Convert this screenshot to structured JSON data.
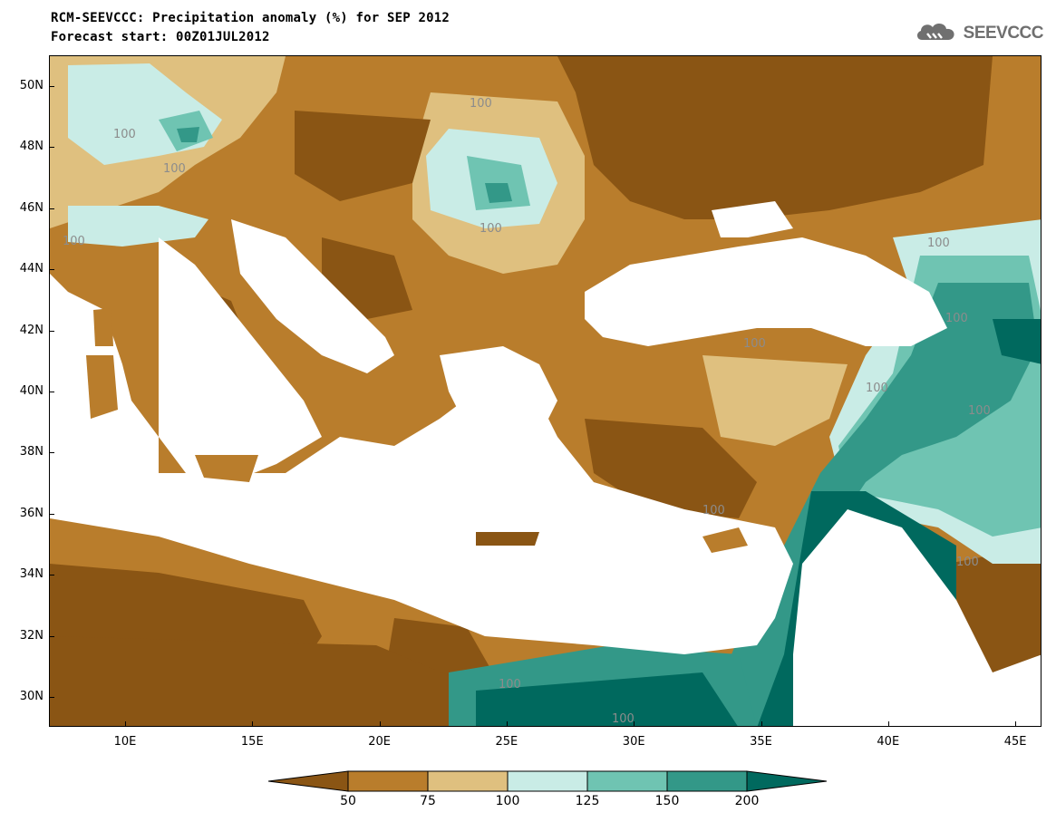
{
  "title_line1": "RCM-SEEVCCC: Precipitation anomaly (%) for SEP 2012",
  "title_line2": "Forecast start: 00Z01JUL2012",
  "logo_text": "SEEVCCC",
  "lat_labels": [
    "50N",
    "48N",
    "46N",
    "44N",
    "42N",
    "40N",
    "38N",
    "36N",
    "34N",
    "32N",
    "30N"
  ],
  "lon_labels": [
    "10E",
    "15E",
    "20E",
    "25E",
    "30E",
    "35E",
    "40E",
    "45E"
  ],
  "colorbar": {
    "levels": [
      "50",
      "75",
      "100",
      "125",
      "150",
      "200"
    ],
    "colors": [
      "#8a5514",
      "#b97d2c",
      "#dfc07f",
      "#c9ece6",
      "#6fc4b2",
      "#339888",
      "#00695e"
    ]
  },
  "contour_label": "100",
  "colors": {
    "sea": "#ffffff",
    "very_dry": "#8a5514",
    "dry": "#b97d2c",
    "slightly_dry": "#dfc07f",
    "slightly_wet": "#c9ece6",
    "wet": "#6fc4b2",
    "very_wet": "#339888",
    "extreme_wet": "#00695e"
  }
}
